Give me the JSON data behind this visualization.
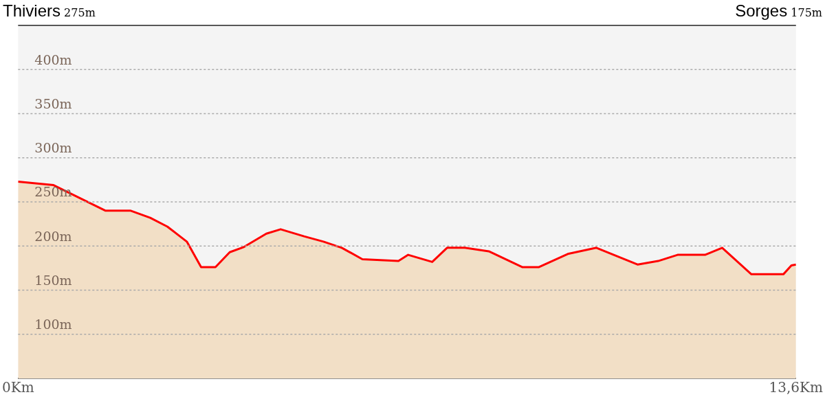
{
  "chart_data": {
    "type": "area",
    "annotations": [
      "Thiviers 275m",
      "Sorges 175m"
    ],
    "x": [
      0,
      0.62,
      1.53,
      1.97,
      2.31,
      2.61,
      2.95,
      3.2,
      3.45,
      3.7,
      3.95,
      4.34,
      4.59,
      5.0,
      5.34,
      5.66,
      6.02,
      6.65,
      6.82,
      7.24,
      7.5,
      7.81,
      8.23,
      8.82,
      9.1,
      9.61,
      10.11,
      10.83,
      11.19,
      11.53,
      12.01,
      12.31,
      12.82,
      13.38,
      13.52,
      13.6
    ],
    "series": [
      {
        "color": "#ff0000",
        "values": [
          273,
          269,
          240,
          240,
          232,
          222,
          205,
          176,
          176,
          193,
          199,
          214,
          219,
          211,
          205,
          198,
          185,
          183,
          190,
          182,
          198,
          198,
          194,
          176,
          176,
          191,
          198,
          179,
          183,
          190,
          190,
          198,
          168,
          168,
          178,
          179
        ]
      }
    ],
    "xlim": [
      0,
      13.6
    ],
    "xticks": [
      {
        "value": 0,
        "label": "0Km"
      },
      {
        "value": 13.6,
        "label": "13,6Km"
      }
    ],
    "ylim": [
      50,
      450
    ],
    "yticks": [
      {
        "value": 100,
        "label": "100m"
      },
      {
        "value": 150,
        "label": "150m"
      },
      {
        "value": 200,
        "label": "200m"
      },
      {
        "value": 250,
        "label": "250m"
      },
      {
        "value": 300,
        "label": "300m"
      },
      {
        "value": 350,
        "label": "350m"
      },
      {
        "value": 400,
        "label": "400m"
      }
    ],
    "grid": "y",
    "legend": false
  }
}
